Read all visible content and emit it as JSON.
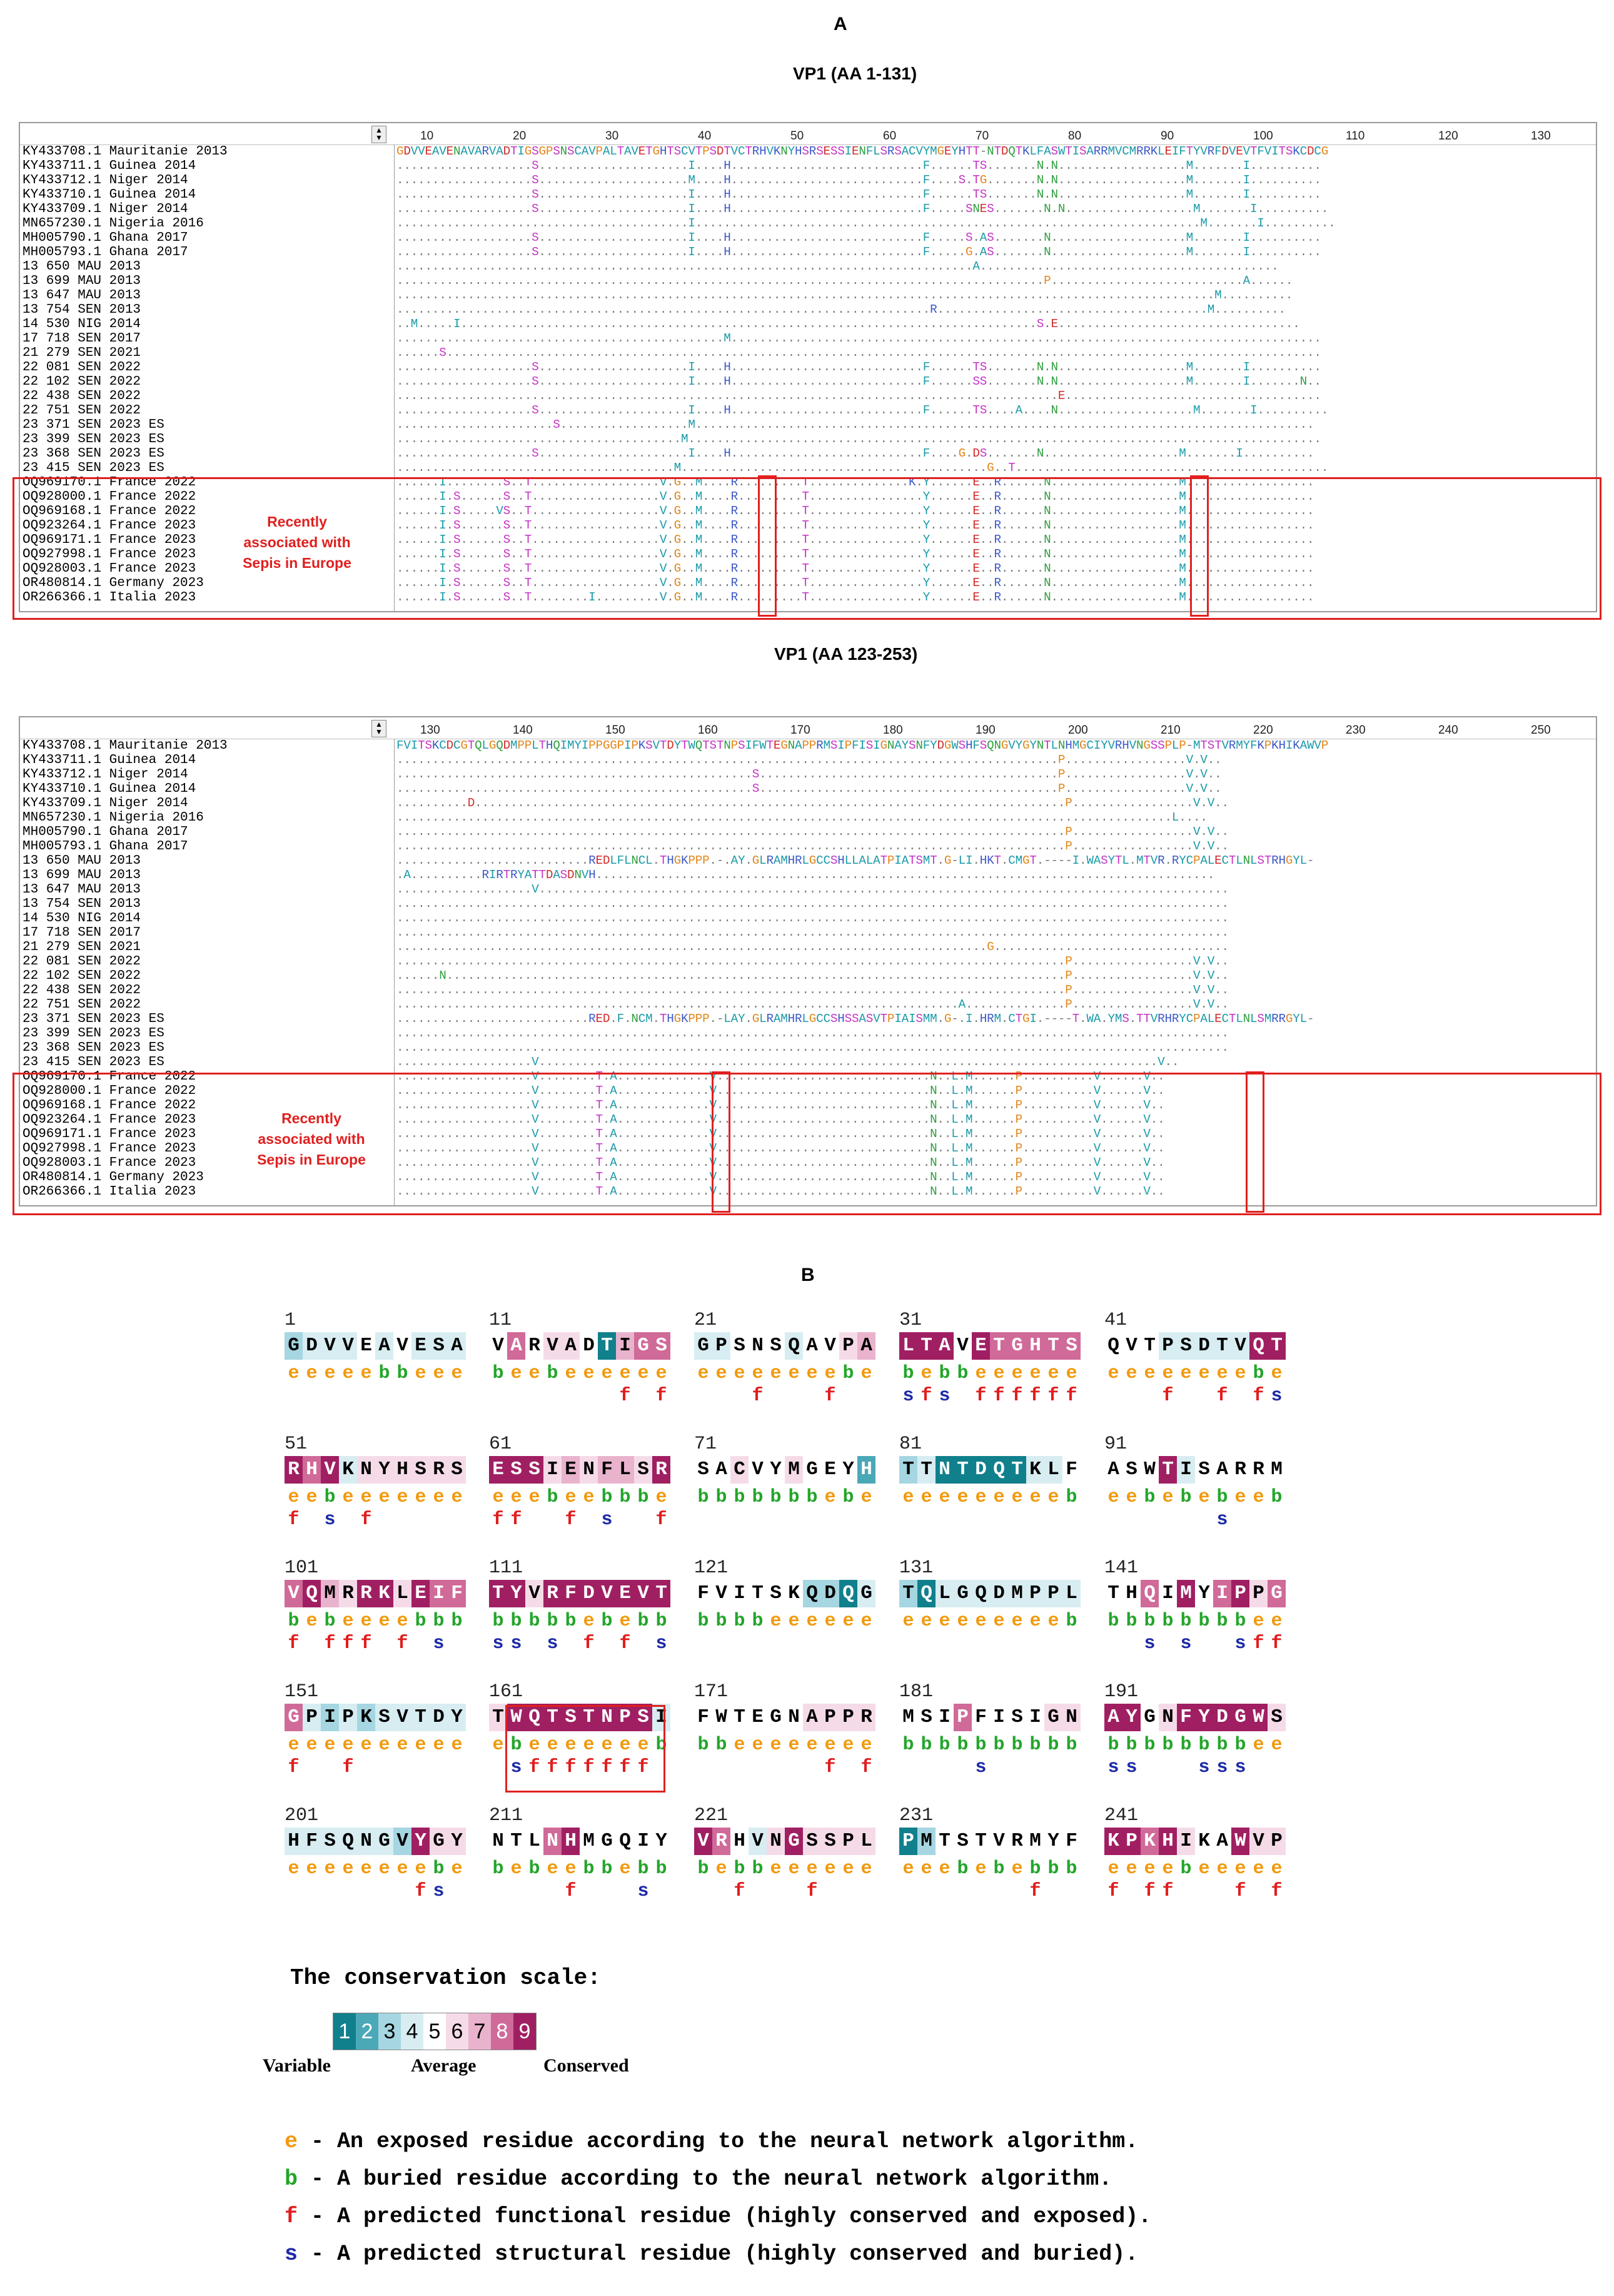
{
  "figure": {
    "panel_a_label": "A",
    "panel_b_label": "B",
    "vp1_top_title": "VP1 (AA 1-131)",
    "vp1_bottom_title": "VP1 (AA 123-253)",
    "recent_note": "Recently\nassociated with\nSepis in Europe"
  },
  "alignment_top": {
    "ticks": [
      "10",
      "20",
      "30",
      "40",
      "50",
      "60",
      "70",
      "80",
      "90",
      "100",
      "110",
      "120",
      "130"
    ],
    "ref_seq": "GDVVEAVENAVARVADTIGSGPSNSCAVPALTAVETGHTSCVTPSDTVCTRHVKNYHSRSESSIENFLSRSACVYMGEYHTT-NTDQTKLFASWTISARRMVCMRRKLEIFTYVRFDVEVTFVITSKCDCG",
    "names": [
      "KY433708.1 Mauritanie 2013",
      "KY433711.1 Guinea 2014",
      "KY433712.1 Niger 2014",
      "KY433710.1 Guinea 2014",
      "KY433709.1 Niger 2014",
      "MN657230.1 Nigeria 2016",
      "MH005790.1 Ghana 2017",
      "MH005793.1 Ghana 2017",
      "13 650 MAU 2013",
      "13 699 MAU 2013",
      "13 647 MAU 2013",
      "13 754 SEN 2013",
      "14 530 NIG 2014",
      "17 718 SEN 2017",
      "21 279 SEN 2021",
      "22 081 SEN 2022",
      "22 102 SEN 2022",
      "22 438 SEN 2022",
      "22 751 SEN 2022",
      "23 371 SEN 2023 ES",
      "23 399 SEN 2023 ES",
      "23 368 SEN 2023 ES",
      "23 415 SEN 2023 ES",
      "OQ969170.1 France 2022",
      "OQ928000.1 France 2022",
      "OQ969168.1 France 2022",
      "OQ923264.1 France 2023",
      "OQ969171.1 France 2023",
      "OQ927998.1 France 2023",
      "OQ928003.1 France 2023",
      "OR480814.1 Germany 2023",
      "OR266366.1 Italia 2023"
    ],
    "seqs": [
      "",
      "...................S.....................I....H...........................F......TS.......N.N..................M.......I..........",
      "...................S.....................M....H...........................F....S.TG.......N.N..................M.......I..........",
      "...................S.....................I....H...........................F......TS.......N.N..................M.......I..........",
      "...................S.....................I....H...........................F.....SNES.......N.N..................M.......I..........",
      ".........................................I.......................................................................M.......I..........",
      "...................S.....................I....H...........................F.....S.AS.......N...................M.......I..........",
      "...................S.....................I....H...........................F.....G.AS.......N...................M.......I..........",
      ".................................................................................A..........................................",
      "...........................................................................................P...........................A......",
      "...................................................................................................................M..........",
      "...........................................................................R......................................M..........",
      "..M.....I.................................................................................S.E..................................",
      "..............................................M...................................................................................",
      "......S...........................................................................................................................",
      "...................S.....................I....H...........................F......TS.......N.N..................M.......I..........",
      "...................S.....................I....H...........................F......SS.......N.N..................M.......I.......N..",
      ".............................................................................................E....................................",
      "...................S.....................I....H...........................F......TS....A....N...................M.......I..........",
      "......................S..................M.......................................................................................",
      "........................................M.........................................................................................",
      "...................S.....................I....H...........................F....G.DS.......N...................M.......I..........",
      ".......................................M...........................................G..T............................................",
      "......I........S..T..................V.G..M....R.........T..............K.Y......E..R......N..................M..................",
      "......I.S......S..T..................V.G..M....R.........T................Y......E..R......N..................M..................",
      "......I.S.....VS..T..................V.G..M....R.........T................Y......E..R......N..................M..................",
      "......I.S......S..T..................V.G..M....R.........T................Y......E..R......N..................M..................",
      "......I.S......S..T..................V.G..M....R.........T................Y......E..R......N..................M..................",
      "......I.S......S..T..................V.G..M....R.........T................Y......E..R......N..................M..................",
      "......I.S......S..T..................V.G..M....R.........T................Y......E..R......N..................M..................",
      "......I.S......S..T..................V.G..M....R.........T................Y......E..R......N..................M..................",
      "......I.S......S..T........I.........V.G..M....R.........T................Y......E..R......N..................M.................."
    ]
  },
  "alignment_bottom": {
    "ticks": [
      "130",
      "140",
      "150",
      "160",
      "170",
      "180",
      "190",
      "200",
      "210",
      "220",
      "230",
      "240",
      "250"
    ],
    "ref_seq": "FVITSKCDCGTQLGQDMPPLTHQIMYIPPGGPIPKSVTDYTWQTSTNPSIFWTEGNAPPRMSIPFISIGNAYSNFYDGWSHFSQNGVYGYNTLNHMGCIYVRHVNGSSPLP-MTSTVRMYFKPKHIKAWVP",
    "names": [
      "KY433708.1 Mauritanie 2013",
      "KY433711.1 Guinea 2014",
      "KY433712.1 Niger 2014",
      "KY433710.1 Guinea 2014",
      "KY433709.1 Niger 2014",
      "MN657230.1 Nigeria 2016",
      "MH005790.1 Ghana 2017",
      "MH005793.1 Ghana 2017",
      "13 650 MAU 2013",
      "13 699 MAU 2013",
      "13 647 MAU 2013",
      "13 754 SEN 2013",
      "14 530 NIG 2014",
      "17 718 SEN 2017",
      "21 279 SEN 2021",
      "22 081 SEN 2022",
      "22 102 SEN 2022",
      "22 438 SEN 2022",
      "22 751 SEN 2022",
      "23 371 SEN 2023 ES",
      "23 399 SEN 2023 ES",
      "23 368 SEN 2023 ES",
      "23 415 SEN 2023 ES",
      "OQ969170.1 France 2022",
      "OQ928000.1 France 2022",
      "OQ969168.1 France 2022",
      "OQ923264.1 France 2023",
      "OQ969171.1 France 2023",
      "OQ927998.1 France 2023",
      "OQ928003.1 France 2023",
      "OR480814.1 Germany 2023",
      "OR266366.1 Italia 2023"
    ],
    "seqs": [
      "",
      ".............................................................................................P.................V.V..",
      "..................................................S..........................................P.................V.V..",
      "..................................................S..........................................P.................V.V..",
      "..........D...................................................................................P.................V.V..",
      ".............................................................................................................L....",
      "..............................................................................................P.................V.V..",
      "..............................................................................................P.................V.V..",
      "...........................REDLFLNCL.THGKPPP.-.AY.GLRAMHRLGCCSHLLALATPIATSMT.G-LI.HKT.CMGT.----I.WASYTL.MTVR.RYCPALECTLNLSTRHGYL-",
      ".A..........RIRTRYATTDASDNVH.......................................................................................",
      "...................V.................................................................................................",
      ".....................................................................................................................",
      ".....................................................................................................................",
      ".....................................................................................................................",
      "...................................................................................G.................................",
      "..............................................................................................P.................V.V..",
      "......N.......................................................................................P.................V.V..",
      "..............................................................................................P.................V.V..",
      "...............................................................................A..............P.................V.V..",
      "...........................RED.F.NCM.THGKPPP.-LAY.GLRAMHRLGCCSHSSASVTPIAISMM.G-.I.HRM.CTGI.----T.WA.YMS.TTVRHRYCPALECTLNLSMRRGYL-",
      ".....................................................................................................................",
      ".....................................................................................................................",
      "...................V.......................................................................................V..",
      "...................V........T.A.............V..............................N..L.M......P..........V......V..",
      "...................V........T.A.............V..............................N..L.M......P..........V......V..",
      "...................V........T.A.............V..............................N..L.M......P..........V......V..",
      "...................V........T.A.............V..............................N..L.M......P..........V......V..",
      "...................V........T.A.............V..............................N..L.M......P..........V......V..",
      "...................V........T.A.............V..............................N..L.M......P..........V......V..",
      "...................V........T.A.............V..............................N..L.M......P..........V......V..",
      "...................V........T.A.............V..............................N..L.M......P..........V......V..",
      "...................V........T.A.............V..............................N..L.M......P..........V......V.."
    ]
  },
  "consurf": {
    "palette": {
      "1": "#10808c",
      "2": "#4ba8b7",
      "3": "#a5d6e1",
      "4": "#d7edf1",
      "5": "#ffffff",
      "6": "#f5dbe8",
      "7": "#e9b3cd",
      "8": "#d06a99",
      "9": "#a01f62"
    },
    "blocks": [
      {
        "start": "1",
        "res": "GDVVEAVESA",
        "cons": "3444545444",
        "eb": "eeeeebbeee",
        "fs": "          "
      },
      {
        "start": "11",
        "res": "VARVADTIGS",
        "cons": "5856651788",
        "eb": "beebeeeeee",
        "fs": "       f f"
      },
      {
        "start": "21",
        "res": "GPSNSQAVPA",
        "cons": "4455545567",
        "eb": "eeeeeeeebe",
        "fs": "   f   f  "
      },
      {
        "start": "31",
        "res": "LTAVETGHTS",
        "cons": "9995988888",
        "eb": "bebbeeeeee",
        "fs": "sfs ffffff"
      },
      {
        "start": "41",
        "res": "QVTPSDTVQT",
        "cons": "5554444499",
        "eb": "eeeeeeeebe",
        "fs": "   f  f fs"
      },
      {
        "start": "51",
        "res": "RHVKNYHSRS",
        "cons": "9894666666",
        "eb": "eebeeeeeee",
        "fs": "f s f     "
      },
      {
        "start": "61",
        "res": "ESSIENFLSR",
        "cons": "9996767769",
        "eb": "eeebeebbbe",
        "fs": "ff  f s  f"
      },
      {
        "start": "71",
        "res": "SACVYMGEYH",
        "cons": "5565565552",
        "eb": "bbbbbbbebe",
        "fs": "          "
      },
      {
        "start": "81",
        "res": "TTNTDQTKLF",
        "cons": "3411111445",
        "eb": "eeeeeeeeeb",
        "fs": "          "
      },
      {
        "start": "91",
        "res": "ASWTISARRM",
        "cons": "5559455555",
        "eb": "eebebebeeb",
        "fs": "      s   "
      },
      {
        "start": "101",
        "res": "VQMRRKLEIF",
        "cons": "8976996988",
        "eb": "bebeeeebbb",
        "fs": "f fff f s "
      },
      {
        "start": "111",
        "res": "TYVRFDVEVT",
        "cons": "9969999999",
        "eb": "bbbbbebebb",
        "fs": "ss s f f s"
      },
      {
        "start": "121",
        "res": "FVITSKQDQG",
        "cons": "5555553314",
        "eb": "bbbbeeeeee",
        "fs": "          "
      },
      {
        "start": "131",
        "res": "TQLGQDMPPL",
        "cons": "3144444444",
        "eb": "eeeeeeeeeb",
        "fs": "          "
      },
      {
        "start": "141",
        "res": "THQIMYIPPG",
        "cons": "5585958968",
        "eb": "bbbbbbbbee",
        "fs": "  s s  sff"
      },
      {
        "start": "151",
        "res": "GPIPKSVTDY",
        "cons": "8434344444",
        "eb": "eeeeeeeeee",
        "fs": "f  f      "
      },
      {
        "start": "161",
        "res": "TWQTSTNPSI",
        "cons": "6999999994",
        "eb": "ebeeeeeeeb",
        "fs": " sfffffff "
      },
      {
        "start": "171",
        "res": "FWTEGNAPPR",
        "cons": "5555556666",
        "eb": "bbeeeeeeee",
        "fs": "       f f"
      },
      {
        "start": "181",
        "res": "MSIPFISIGN",
        "cons": "5558555566",
        "eb": "bbbbbbbbbb",
        "fs": "    s     "
      },
      {
        "start": "191",
        "res": "AYGNFYDGWS",
        "cons": "9956999996",
        "eb": "bbbbbbbbee",
        "fs": "ss   sss  "
      },
      {
        "start": "201",
        "res": "HFSQNGVYGY",
        "cons": "4444443966",
        "eb": "eeeeeeeebe",
        "fs": "       fs "
      },
      {
        "start": "211",
        "res": "NTLNHMGQIY",
        "cons": "5558955555",
        "eb": "bebeebbebb",
        "fs": "    f   s "
      },
      {
        "start": "221",
        "res": "VRHVNGSSPL",
        "cons": "9854696666",
        "eb": "bebbeeeeee",
        "fs": "  f   f   "
      },
      {
        "start": "231",
        "res": "PMTSTVRMYF",
        "cons": "1355555555",
        "eb": "eeebebebbb",
        "fs": "       f  "
      },
      {
        "start": "241",
        "res": "KPKHIKAWVP",
        "cons": "9989655966",
        "eb": "eeeebeeeee",
        "fs": "f ff   f f"
      }
    ],
    "scale_title": "The conservation scale:",
    "scale_digits": [
      "1",
      "2",
      "3",
      "4",
      "5",
      "6",
      "7",
      "8",
      "9"
    ],
    "scale_labels": {
      "variable": "Variable",
      "average": "Average",
      "conserved": "Conserved"
    },
    "legend": [
      {
        "key": "e",
        "text": " - An exposed residue according to the neural network algorithm.",
        "color": "#f19a0e"
      },
      {
        "key": "b",
        "text": " - A buried residue according to the neural network algorithm.",
        "color": "#23a52a"
      },
      {
        "key": "f",
        "text": " - A predicted functional residue (highly conserved and exposed).",
        "color": "#e01e1e"
      },
      {
        "key": "s",
        "text": " - A predicted structural residue (highly conserved and buried).",
        "color": "#1d2aa6"
      }
    ]
  }
}
